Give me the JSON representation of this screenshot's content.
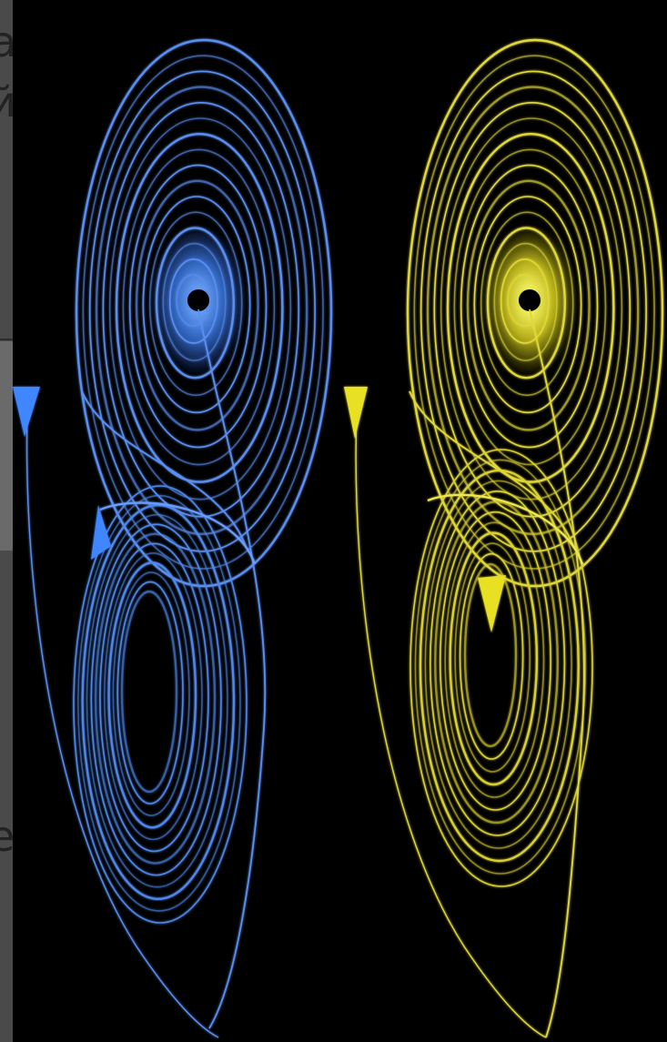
{
  "fragments": [
    "а",
    "й",
    "е"
  ]
}
